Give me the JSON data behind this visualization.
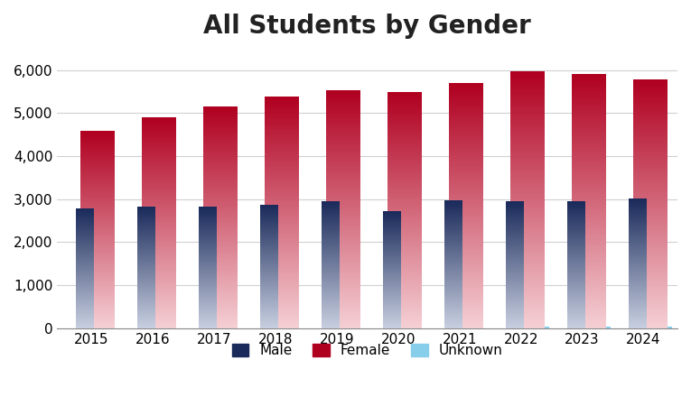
{
  "title": "All Students by Gender",
  "years": [
    2015,
    2016,
    2017,
    2018,
    2019,
    2020,
    2021,
    2022,
    2023,
    2024
  ],
  "male": [
    2775,
    2830,
    2830,
    2865,
    2940,
    2720,
    2975,
    2940,
    2950,
    3000
  ],
  "female": [
    4580,
    4900,
    5150,
    5380,
    5520,
    5480,
    5700,
    5970,
    5900,
    5780
  ],
  "unknown": [
    0,
    0,
    0,
    0,
    0,
    0,
    0,
    40,
    30,
    35
  ],
  "male_top_color": "#1a2a5a",
  "male_bottom_color": "#c8cfe0",
  "female_top_color": "#b00020",
  "female_bottom_color": "#f5d0d5",
  "unknown_color": "#87ceeb",
  "ylim": [
    0,
    6500
  ],
  "yticks": [
    0,
    1000,
    2000,
    3000,
    4000,
    5000,
    6000
  ],
  "bar_width": 0.55,
  "male_bar_width": 0.28,
  "title_fontsize": 20,
  "tick_fontsize": 11,
  "background_color": "#ffffff",
  "legend_labels": [
    "Male",
    "Female",
    "Unknown"
  ],
  "legend_colors": [
    "#1a2a5a",
    "#b00020",
    "#87ceeb"
  ]
}
